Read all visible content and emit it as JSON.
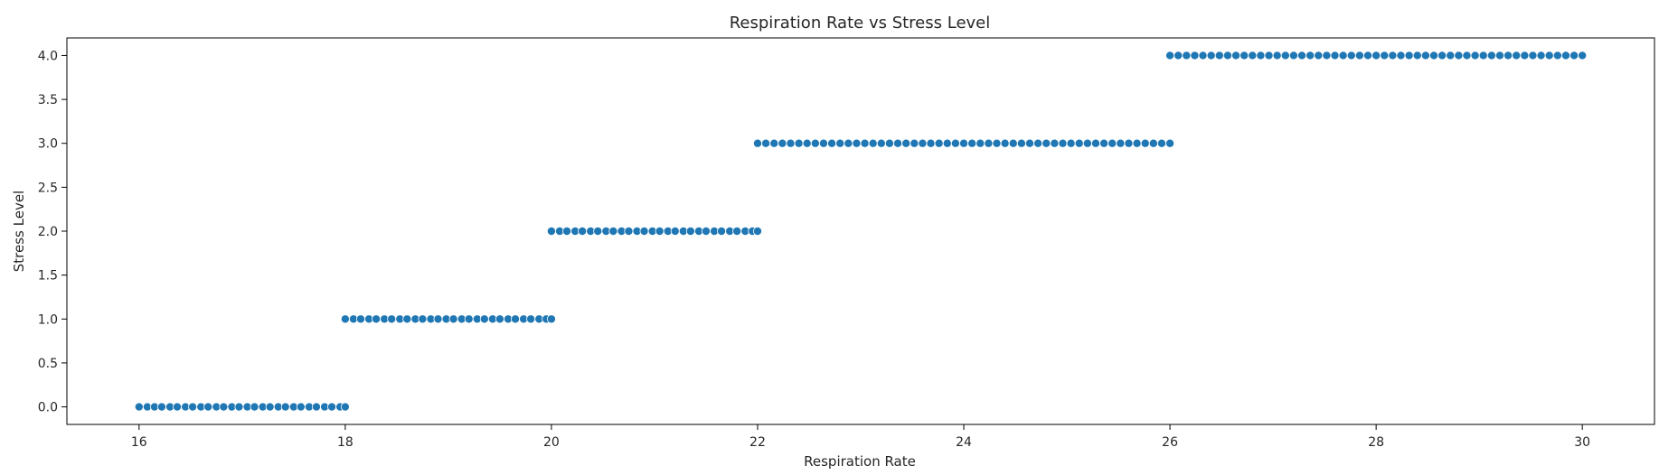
{
  "chart_data": {
    "type": "scatter",
    "title": "Respiration Rate vs Stress Level",
    "xlabel": "Respiration Rate",
    "ylabel": "Stress Level",
    "xlim": [
      15.3,
      30.7
    ],
    "ylim": [
      -0.2,
      4.2
    ],
    "xticks": [
      16,
      18,
      20,
      22,
      24,
      26,
      28,
      30
    ],
    "yticks": [
      0.0,
      0.5,
      1.0,
      1.5,
      2.0,
      2.5,
      3.0,
      3.5,
      4.0
    ],
    "xtick_labels": [
      "16",
      "18",
      "20",
      "22",
      "24",
      "26",
      "28",
      "30"
    ],
    "ytick_labels": [
      "0.0",
      "0.5",
      "1.0",
      "1.5",
      "2.0",
      "2.5",
      "3.0",
      "3.5",
      "4.0"
    ],
    "grid": false,
    "legend": "none",
    "marker_color": "#1f77b4",
    "marker_edge_color": "#ffffff",
    "series": [
      {
        "groups": [
          {
            "y": 0,
            "x": [
              16.0,
              16.08,
              16.15,
              16.22,
              16.3,
              16.37,
              16.45,
              16.52,
              16.6,
              16.67,
              16.75,
              16.82,
              16.9,
              16.97,
              17.05,
              17.12,
              17.2,
              17.27,
              17.35,
              17.42,
              17.5,
              17.57,
              17.65,
              17.72,
              17.8,
              17.87,
              17.95,
              18.0
            ]
          },
          {
            "y": 1,
            "x": [
              18.0,
              18.08,
              18.15,
              18.23,
              18.3,
              18.38,
              18.45,
              18.53,
              18.6,
              18.68,
              18.75,
              18.83,
              18.9,
              18.98,
              19.05,
              19.13,
              19.2,
              19.28,
              19.35,
              19.43,
              19.5,
              19.58,
              19.65,
              19.73,
              19.8,
              19.88,
              19.95,
              20.0
            ]
          },
          {
            "y": 2,
            "x": [
              20.0,
              20.08,
              20.15,
              20.23,
              20.3,
              20.38,
              20.45,
              20.53,
              20.6,
              20.68,
              20.75,
              20.83,
              20.9,
              20.98,
              21.05,
              21.13,
              21.2,
              21.28,
              21.35,
              21.43,
              21.5,
              21.58,
              21.65,
              21.73,
              21.8,
              21.88,
              21.95,
              22.0
            ]
          },
          {
            "y": 3,
            "x": [
              22.0,
              22.08,
              22.16,
              22.24,
              22.32,
              22.4,
              22.48,
              22.56,
              22.64,
              22.72,
              22.8,
              22.88,
              22.96,
              23.04,
              23.12,
              23.2,
              23.28,
              23.36,
              23.44,
              23.52,
              23.6,
              23.68,
              23.76,
              23.84,
              23.92,
              24.0,
              24.08,
              24.16,
              24.24,
              24.32,
              24.4,
              24.48,
              24.56,
              24.64,
              24.72,
              24.8,
              24.88,
              24.96,
              25.04,
              25.12,
              25.2,
              25.28,
              25.36,
              25.44,
              25.52,
              25.6,
              25.68,
              25.76,
              25.84,
              25.92,
              26.0
            ]
          },
          {
            "y": 4,
            "x": [
              26.0,
              26.08,
              26.16,
              26.24,
              26.32,
              26.4,
              26.48,
              26.56,
              26.64,
              26.72,
              26.8,
              26.88,
              26.96,
              27.04,
              27.12,
              27.2,
              27.28,
              27.36,
              27.44,
              27.52,
              27.6,
              27.68,
              27.76,
              27.84,
              27.92,
              28.0,
              28.08,
              28.16,
              28.24,
              28.32,
              28.4,
              28.48,
              28.56,
              28.64,
              28.72,
              28.8,
              28.88,
              28.96,
              29.04,
              29.12,
              29.2,
              29.28,
              29.36,
              29.44,
              29.52,
              29.6,
              29.68,
              29.76,
              29.84,
              29.92,
              30.0
            ]
          }
        ]
      }
    ]
  }
}
